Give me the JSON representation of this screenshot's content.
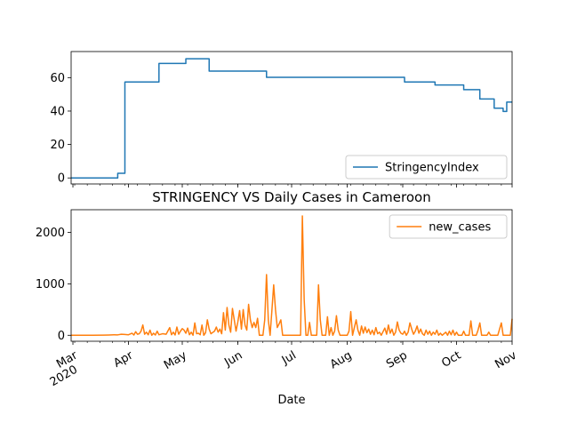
{
  "chart_data": [
    {
      "type": "line",
      "title": "",
      "xlabel": "",
      "ylabel": "",
      "x_range": [
        "2020-02-29",
        "2020-11-01"
      ],
      "ylim": [
        -3.6,
        75.6
      ],
      "yticks": [
        0,
        20,
        40,
        60
      ],
      "grid": false,
      "legend": {
        "position": "lower-right",
        "entries": [
          "StringencyIndex"
        ]
      },
      "series": [
        {
          "name": "StringencyIndex",
          "color": "#1f77b4",
          "steps": [
            [
              "2020-02-29",
              0
            ],
            [
              "2020-03-26",
              2.8
            ],
            [
              "2020-03-30",
              57.4
            ],
            [
              "2020-04-18",
              68.5
            ],
            [
              "2020-05-03",
              71.3
            ],
            [
              "2020-05-16",
              63.9
            ],
            [
              "2020-06-17",
              60.2
            ],
            [
              "2020-09-02",
              57.4
            ],
            [
              "2020-09-19",
              55.6
            ],
            [
              "2020-10-05",
              52.8
            ],
            [
              "2020-10-14",
              47.2
            ],
            [
              "2020-10-22",
              41.7
            ],
            [
              "2020-10-27",
              39.8
            ],
            [
              "2020-10-29",
              45.4
            ],
            [
              "2020-11-01",
              45.4
            ]
          ]
        }
      ]
    },
    {
      "type": "line",
      "title": "STRINGENCY VS Daily Cases in Cameroon",
      "xlabel": "Date",
      "ylabel": "",
      "x_range": [
        "2020-02-29",
        "2020-11-01"
      ],
      "ylim": [
        -116,
        2440
      ],
      "yticks": [
        0,
        1000,
        2000
      ],
      "grid": false,
      "legend": {
        "position": "upper-right",
        "entries": [
          "new_cases"
        ]
      },
      "xticks_major": [
        {
          "date": "2020-03-01",
          "label": "Mar",
          "sublabel": "2020"
        },
        {
          "date": "2020-04-01",
          "label": "Apr"
        },
        {
          "date": "2020-05-01",
          "label": "May"
        },
        {
          "date": "2020-06-01",
          "label": "Jun"
        },
        {
          "date": "2020-07-01",
          "label": "Jul"
        },
        {
          "date": "2020-08-01",
          "label": "Aug"
        },
        {
          "date": "2020-09-01",
          "label": "Sep"
        },
        {
          "date": "2020-10-01",
          "label": "Oct"
        },
        {
          "date": "2020-11-01",
          "label": "Nov"
        }
      ],
      "series": [
        {
          "name": "new_cases",
          "color": "#ff7f0e",
          "points": [
            [
              "2020-02-29",
              0
            ],
            [
              "2020-03-06",
              0
            ],
            [
              "2020-03-12",
              0
            ],
            [
              "2020-03-18",
              2
            ],
            [
              "2020-03-21",
              5
            ],
            [
              "2020-03-24",
              10
            ],
            [
              "2020-03-26",
              8
            ],
            [
              "2020-03-28",
              20
            ],
            [
              "2020-03-30",
              15
            ],
            [
              "2020-04-01",
              10
            ],
            [
              "2020-04-03",
              40
            ],
            [
              "2020-04-04",
              5
            ],
            [
              "2020-04-05",
              70
            ],
            [
              "2020-04-06",
              20
            ],
            [
              "2020-04-07",
              30
            ],
            [
              "2020-04-08",
              80
            ],
            [
              "2020-04-09",
              200
            ],
            [
              "2020-04-10",
              20
            ],
            [
              "2020-04-11",
              60
            ],
            [
              "2020-04-12",
              10
            ],
            [
              "2020-04-13",
              100
            ],
            [
              "2020-04-14",
              0
            ],
            [
              "2020-04-15",
              40
            ],
            [
              "2020-04-16",
              5
            ],
            [
              "2020-04-17",
              80
            ],
            [
              "2020-04-18",
              10
            ],
            [
              "2020-04-20",
              30
            ],
            [
              "2020-04-22",
              20
            ],
            [
              "2020-04-24",
              150
            ],
            [
              "2020-04-25",
              10
            ],
            [
              "2020-04-26",
              60
            ],
            [
              "2020-04-27",
              5
            ],
            [
              "2020-04-28",
              160
            ],
            [
              "2020-04-29",
              20
            ],
            [
              "2020-04-30",
              80
            ],
            [
              "2020-05-01",
              130
            ],
            [
              "2020-05-02",
              100
            ],
            [
              "2020-05-03",
              40
            ],
            [
              "2020-05-04",
              140
            ],
            [
              "2020-05-05",
              10
            ],
            [
              "2020-05-06",
              60
            ],
            [
              "2020-05-07",
              0
            ],
            [
              "2020-05-08",
              240
            ],
            [
              "2020-05-09",
              30
            ],
            [
              "2020-05-10",
              40
            ],
            [
              "2020-05-11",
              10
            ],
            [
              "2020-05-12",
              200
            ],
            [
              "2020-05-13",
              0
            ],
            [
              "2020-05-14",
              50
            ],
            [
              "2020-05-15",
              300
            ],
            [
              "2020-05-16",
              120
            ],
            [
              "2020-05-17",
              30
            ],
            [
              "2020-05-19",
              80
            ],
            [
              "2020-05-20",
              160
            ],
            [
              "2020-05-21",
              60
            ],
            [
              "2020-05-22",
              120
            ],
            [
              "2020-05-23",
              30
            ],
            [
              "2020-05-24",
              440
            ],
            [
              "2020-05-25",
              100
            ],
            [
              "2020-05-26",
              540
            ],
            [
              "2020-05-27",
              200
            ],
            [
              "2020-05-28",
              60
            ],
            [
              "2020-05-29",
              520
            ],
            [
              "2020-05-30",
              300
            ],
            [
              "2020-05-31",
              80
            ],
            [
              "2020-06-01",
              260
            ],
            [
              "2020-06-02",
              480
            ],
            [
              "2020-06-03",
              120
            ],
            [
              "2020-06-04",
              500
            ],
            [
              "2020-06-05",
              200
            ],
            [
              "2020-06-06",
              100
            ],
            [
              "2020-06-07",
              600
            ],
            [
              "2020-06-08",
              300
            ],
            [
              "2020-06-09",
              150
            ],
            [
              "2020-06-10",
              250
            ],
            [
              "2020-06-11",
              150
            ],
            [
              "2020-06-12",
              330
            ],
            [
              "2020-06-13",
              0
            ],
            [
              "2020-06-14",
              0
            ],
            [
              "2020-06-15",
              0
            ],
            [
              "2020-06-16",
              300
            ],
            [
              "2020-06-17",
              1180
            ],
            [
              "2020-06-18",
              300
            ],
            [
              "2020-06-19",
              0
            ],
            [
              "2020-06-20",
              480
            ],
            [
              "2020-06-21",
              980
            ],
            [
              "2020-06-22",
              500
            ],
            [
              "2020-06-23",
              150
            ],
            [
              "2020-06-24",
              220
            ],
            [
              "2020-06-25",
              300
            ],
            [
              "2020-06-26",
              0
            ],
            [
              "2020-06-28",
              0
            ],
            [
              "2020-07-01",
              0
            ],
            [
              "2020-07-04",
              0
            ],
            [
              "2020-07-06",
              0
            ],
            [
              "2020-07-07",
              2320
            ],
            [
              "2020-07-08",
              700
            ],
            [
              "2020-07-09",
              0
            ],
            [
              "2020-07-10",
              0
            ],
            [
              "2020-07-11",
              250
            ],
            [
              "2020-07-12",
              0
            ],
            [
              "2020-07-15",
              0
            ],
            [
              "2020-07-16",
              980
            ],
            [
              "2020-07-17",
              300
            ],
            [
              "2020-07-18",
              0
            ],
            [
              "2020-07-20",
              0
            ],
            [
              "2020-07-21",
              360
            ],
            [
              "2020-07-22",
              0
            ],
            [
              "2020-07-23",
              150
            ],
            [
              "2020-07-24",
              0
            ],
            [
              "2020-07-25",
              80
            ],
            [
              "2020-07-26",
              380
            ],
            [
              "2020-07-27",
              100
            ],
            [
              "2020-07-28",
              0
            ],
            [
              "2020-07-30",
              0
            ],
            [
              "2020-08-01",
              0
            ],
            [
              "2020-08-02",
              80
            ],
            [
              "2020-08-03",
              460
            ],
            [
              "2020-08-04",
              0
            ],
            [
              "2020-08-06",
              300
            ],
            [
              "2020-08-07",
              100
            ],
            [
              "2020-08-08",
              0
            ],
            [
              "2020-08-09",
              180
            ],
            [
              "2020-08-10",
              40
            ],
            [
              "2020-08-11",
              160
            ],
            [
              "2020-08-12",
              50
            ],
            [
              "2020-08-13",
              120
            ],
            [
              "2020-08-14",
              20
            ],
            [
              "2020-08-15",
              100
            ],
            [
              "2020-08-16",
              10
            ],
            [
              "2020-08-17",
              150
            ],
            [
              "2020-08-18",
              30
            ],
            [
              "2020-08-19",
              60
            ],
            [
              "2020-08-20",
              0
            ],
            [
              "2020-08-22",
              140
            ],
            [
              "2020-08-23",
              20
            ],
            [
              "2020-08-24",
              200
            ],
            [
              "2020-08-25",
              40
            ],
            [
              "2020-08-26",
              120
            ],
            [
              "2020-08-27",
              0
            ],
            [
              "2020-08-28",
              60
            ],
            [
              "2020-08-29",
              260
            ],
            [
              "2020-08-30",
              100
            ],
            [
              "2020-08-31",
              40
            ],
            [
              "2020-09-01",
              20
            ],
            [
              "2020-09-02",
              80
            ],
            [
              "2020-09-03",
              0
            ],
            [
              "2020-09-04",
              60
            ],
            [
              "2020-09-05",
              240
            ],
            [
              "2020-09-06",
              120
            ],
            [
              "2020-09-07",
              20
            ],
            [
              "2020-09-08",
              80
            ],
            [
              "2020-09-09",
              180
            ],
            [
              "2020-09-10",
              40
            ],
            [
              "2020-09-11",
              120
            ],
            [
              "2020-09-12",
              30
            ],
            [
              "2020-09-13",
              0
            ],
            [
              "2020-09-14",
              100
            ],
            [
              "2020-09-15",
              20
            ],
            [
              "2020-09-16",
              80
            ],
            [
              "2020-09-17",
              0
            ],
            [
              "2020-09-18",
              60
            ],
            [
              "2020-09-19",
              20
            ],
            [
              "2020-09-20",
              100
            ],
            [
              "2020-09-21",
              0
            ],
            [
              "2020-09-22",
              40
            ],
            [
              "2020-09-23",
              0
            ],
            [
              "2020-09-25",
              60
            ],
            [
              "2020-09-26",
              0
            ],
            [
              "2020-09-27",
              80
            ],
            [
              "2020-09-28",
              10
            ],
            [
              "2020-09-29",
              100
            ],
            [
              "2020-09-30",
              0
            ],
            [
              "2020-10-01",
              60
            ],
            [
              "2020-10-02",
              0
            ],
            [
              "2020-10-04",
              0
            ],
            [
              "2020-10-05",
              80
            ],
            [
              "2020-10-06",
              0
            ],
            [
              "2020-10-08",
              0
            ],
            [
              "2020-10-09",
              280
            ],
            [
              "2020-10-10",
              0
            ],
            [
              "2020-10-12",
              0
            ],
            [
              "2020-10-13",
              100
            ],
            [
              "2020-10-14",
              240
            ],
            [
              "2020-10-15",
              0
            ],
            [
              "2020-10-18",
              0
            ],
            [
              "2020-10-19",
              60
            ],
            [
              "2020-10-20",
              0
            ],
            [
              "2020-10-24",
              0
            ],
            [
              "2020-10-26",
              240
            ],
            [
              "2020-10-27",
              0
            ],
            [
              "2020-10-31",
              0
            ],
            [
              "2020-11-01",
              320
            ]
          ]
        }
      ]
    }
  ]
}
